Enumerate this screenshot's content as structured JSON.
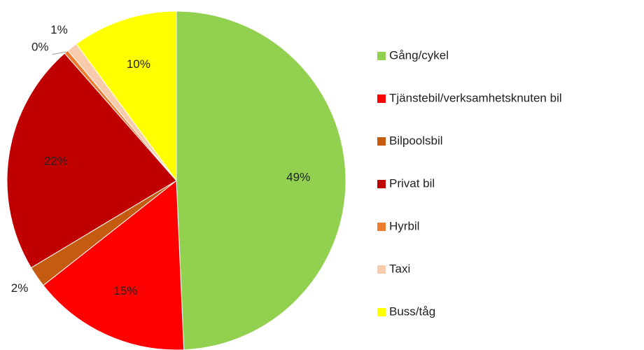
{
  "chart_data": {
    "type": "pie",
    "categories": [
      "Gång/cykel",
      "Tjänstebil/verksamhetsknuten bil",
      "Bilpoolsbil",
      "Privat bil",
      "Hyrbil",
      "Taxi",
      "Buss/tåg"
    ],
    "values": [
      49,
      15,
      2,
      22,
      0.4,
      1,
      10
    ],
    "value_labels": [
      "49%",
      "15%",
      "2%",
      "22%",
      "0%",
      "1%",
      "10%"
    ],
    "colors": [
      "#92d050",
      "#ff0000",
      "#c55a11",
      "#c00000",
      "#ed7d31",
      "#f8cbad",
      "#ffff00"
    ],
    "legend": "right"
  }
}
